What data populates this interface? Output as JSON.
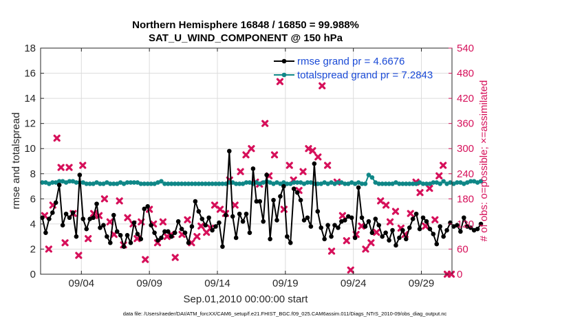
{
  "chart_data": {
    "type": "line",
    "title_line1": "Northern Hemisphere 16848 / 16850 = 99.988%",
    "title_line2": "SAT_U_WIND_COMPONENT @ 150 hPa",
    "xlabel": "Sep.01,2010 00:00:00 start",
    "ylabel_left": "rmse and totalspread",
    "ylabel_right": "# of obs: o=possible; ×=assimilated",
    "footnote": "data file: /Users/raeder/DAI/ATM_forcXX/CAM6_setup/f.e21.FHIST_BGC.f09_025.CAM6assim.011/Diags_NTrS_2010-09/obs_diag_output.nc",
    "xlim": [
      1,
      31.25
    ],
    "ylim_left": [
      0,
      18
    ],
    "ylim_right": [
      0,
      540
    ],
    "x_ticks": [
      4,
      9,
      14,
      19,
      24,
      29
    ],
    "x_tick_labels": [
      "09/04",
      "09/09",
      "09/14",
      "09/19",
      "09/24",
      "09/29"
    ],
    "y_left_ticks": [
      "0",
      "2",
      "4",
      "6",
      "8",
      "10",
      "12",
      "14",
      "16",
      "18"
    ],
    "y_right_ticks": [
      "0",
      "60",
      "120",
      "180",
      "240",
      "300",
      "360",
      "420",
      "480",
      "540"
    ],
    "x_start": 1.125,
    "x_step": 0.25,
    "series": [
      {
        "name": "rmse",
        "legend": "rmse grand pr = 4.6676",
        "color": "#000000",
        "values": [
          4.5,
          3.3,
          4.4,
          4.9,
          5.7,
          7.1,
          3.9,
          4.8,
          4.5,
          4.9,
          3.0,
          7.9,
          4.4,
          3.6,
          4.4,
          4.5,
          5.6,
          3.7,
          3.9,
          3.0,
          2.5,
          4.7,
          3.4,
          3.1,
          2.2,
          3.1,
          2.5,
          4.1,
          3.2,
          2.8,
          5.2,
          5.4,
          3.9,
          3.3,
          2.7,
          2.9,
          3.4,
          3.4,
          3.0,
          3.3,
          4.2,
          3.6,
          3.3,
          2.5,
          3.8,
          5.8,
          5.0,
          4.4,
          3.9,
          4.5,
          3.5,
          3.8,
          4.1,
          2.2,
          4.7,
          9.8,
          4.6,
          2.9,
          4.8,
          4.2,
          4.8,
          3.3,
          8.4,
          5.8,
          5.8,
          4.2,
          7.9,
          2.8,
          5.9,
          4.3,
          6.2,
          7.0,
          3.0,
          2.5,
          6.8,
          6.5,
          5.9,
          4.3,
          4.5,
          3.8,
          8.8,
          5.0,
          3.7,
          2.8,
          3.9,
          3.0,
          3.9,
          3.7,
          4.2,
          4.3,
          4.6,
          4.5,
          2.9,
          6.9,
          4.5,
          3.8,
          4.2,
          3.3,
          4.4,
          3.9,
          3.0,
          3.3,
          2.7,
          3.5,
          2.3,
          2.9,
          3.5,
          2.8,
          3.7,
          4.4,
          4.8,
          3.6,
          4.5,
          4.2,
          3.6,
          3.2,
          2.4,
          3.8,
          3.0,
          3.5,
          4.1,
          3.8,
          3.9,
          3.4,
          4.5,
          3.8,
          3.7,
          3.5,
          3.6,
          4.0
        ]
      },
      {
        "name": "totalspread",
        "legend": "totalspread grand pr = 7.2843",
        "color": "#0f8787",
        "values": [
          7.3,
          7.3,
          7.2,
          7.3,
          7.3,
          7.4,
          7.4,
          7.3,
          7.4,
          7.4,
          7.3,
          7.3,
          7.3,
          7.2,
          7.2,
          7.2,
          7.3,
          7.2,
          7.2,
          7.3,
          7.2,
          7.2,
          7.2,
          7.3,
          7.2,
          7.3,
          7.3,
          7.3,
          7.3,
          7.2,
          7.2,
          7.2,
          7.2,
          7.2,
          7.3,
          7.4,
          7.2,
          7.2,
          7.2,
          7.2,
          7.2,
          7.2,
          7.2,
          7.2,
          7.2,
          7.2,
          7.2,
          7.2,
          7.2,
          7.2,
          7.2,
          7.2,
          7.2,
          7.2,
          7.2,
          7.3,
          7.3,
          7.2,
          7.2,
          7.2,
          7.3,
          7.3,
          7.2,
          7.3,
          7.2,
          7.3,
          7.4,
          7.3,
          7.2,
          7.3,
          7.2,
          7.3,
          7.2,
          7.2,
          7.3,
          7.3,
          7.3,
          7.2,
          7.3,
          7.3,
          7.2,
          7.2,
          7.2,
          7.3,
          7.2,
          7.3,
          7.2,
          7.3,
          7.3,
          7.2,
          7.2,
          7.3,
          7.2,
          7.3,
          7.2,
          7.2,
          7.9,
          7.7,
          7.3,
          7.2,
          7.2,
          7.2,
          7.2,
          7.2,
          7.3,
          7.2,
          7.2,
          7.2,
          7.2,
          7.2,
          7.2,
          7.3,
          7.2,
          7.2,
          7.2,
          7.3,
          7.3,
          7.2,
          7.4,
          7.2,
          7.3,
          7.2,
          7.3,
          7.3,
          7.2,
          7.3,
          7.4,
          7.4,
          7.3,
          7.4
        ]
      }
    ],
    "obs_assimilated": {
      "name": "# of obs assimilated",
      "color": "#d6105a",
      "axis": "right",
      "points": [
        [
          1.3,
          140
        ],
        [
          1.6,
          60
        ],
        [
          1.9,
          165
        ],
        [
          2.2,
          325
        ],
        [
          2.5,
          255
        ],
        [
          2.8,
          75
        ],
        [
          3.1,
          255
        ],
        [
          3.4,
          145
        ],
        [
          3.8,
          45
        ],
        [
          4.1,
          260
        ],
        [
          4.5,
          85
        ],
        [
          4.9,
          145
        ],
        [
          5.3,
          140
        ],
        [
          5.7,
          180
        ],
        [
          6.1,
          125
        ],
        [
          6.4,
          95
        ],
        [
          6.8,
          175
        ],
        [
          7.1,
          70
        ],
        [
          7.4,
          135
        ],
        [
          7.8,
          120
        ],
        [
          8.1,
          85
        ],
        [
          8.4,
          125
        ],
        [
          8.7,
          35
        ],
        [
          9.0,
          155
        ],
        [
          9.3,
          120
        ],
        [
          9.6,
          75
        ],
        [
          10.0,
          125
        ],
        [
          10.3,
          90
        ],
        [
          10.6,
          95
        ],
        [
          10.9,
          40
        ],
        [
          11.4,
          95
        ],
        [
          11.8,
          130
        ],
        [
          12.1,
          75
        ],
        [
          12.5,
          90
        ],
        [
          12.8,
          115
        ],
        [
          13.2,
          100
        ],
        [
          13.5,
          110
        ],
        [
          13.8,
          165
        ],
        [
          14.2,
          155
        ],
        [
          14.6,
          145
        ],
        [
          14.9,
          225
        ],
        [
          15.3,
          165
        ],
        [
          15.7,
          245
        ],
        [
          16.1,
          285
        ],
        [
          16.5,
          300
        ],
        [
          16.8,
          220
        ],
        [
          17.1,
          215
        ],
        [
          17.5,
          360
        ],
        [
          17.8,
          235
        ],
        [
          18.2,
          285
        ],
        [
          18.6,
          460
        ],
        [
          18.9,
          155
        ],
        [
          19.3,
          260
        ],
        [
          19.6,
          225
        ],
        [
          20.0,
          200
        ],
        [
          20.3,
          245
        ],
        [
          20.7,
          300
        ],
        [
          21.0,
          295
        ],
        [
          21.4,
          280
        ],
        [
          21.7,
          450
        ],
        [
          22.1,
          260
        ],
        [
          22.4,
          55
        ],
        [
          22.8,
          220
        ],
        [
          23.2,
          140
        ],
        [
          23.5,
          80
        ],
        [
          23.8,
          10
        ],
        [
          24.2,
          95
        ],
        [
          24.6,
          115
        ],
        [
          24.9,
          60
        ],
        [
          25.3,
          75
        ],
        [
          25.7,
          100
        ],
        [
          26.0,
          175
        ],
        [
          26.4,
          165
        ],
        [
          26.7,
          125
        ],
        [
          27.1,
          150
        ],
        [
          27.5,
          110
        ],
        [
          27.8,
          95
        ],
        [
          28.2,
          145
        ],
        [
          28.6,
          220
        ],
        [
          28.9,
          195
        ],
        [
          29.3,
          115
        ],
        [
          29.6,
          205
        ],
        [
          30.0,
          130
        ],
        [
          30.3,
          235
        ],
        [
          30.6,
          260
        ],
        [
          30.9,
          0
        ],
        [
          31.2,
          0
        ]
      ]
    }
  }
}
